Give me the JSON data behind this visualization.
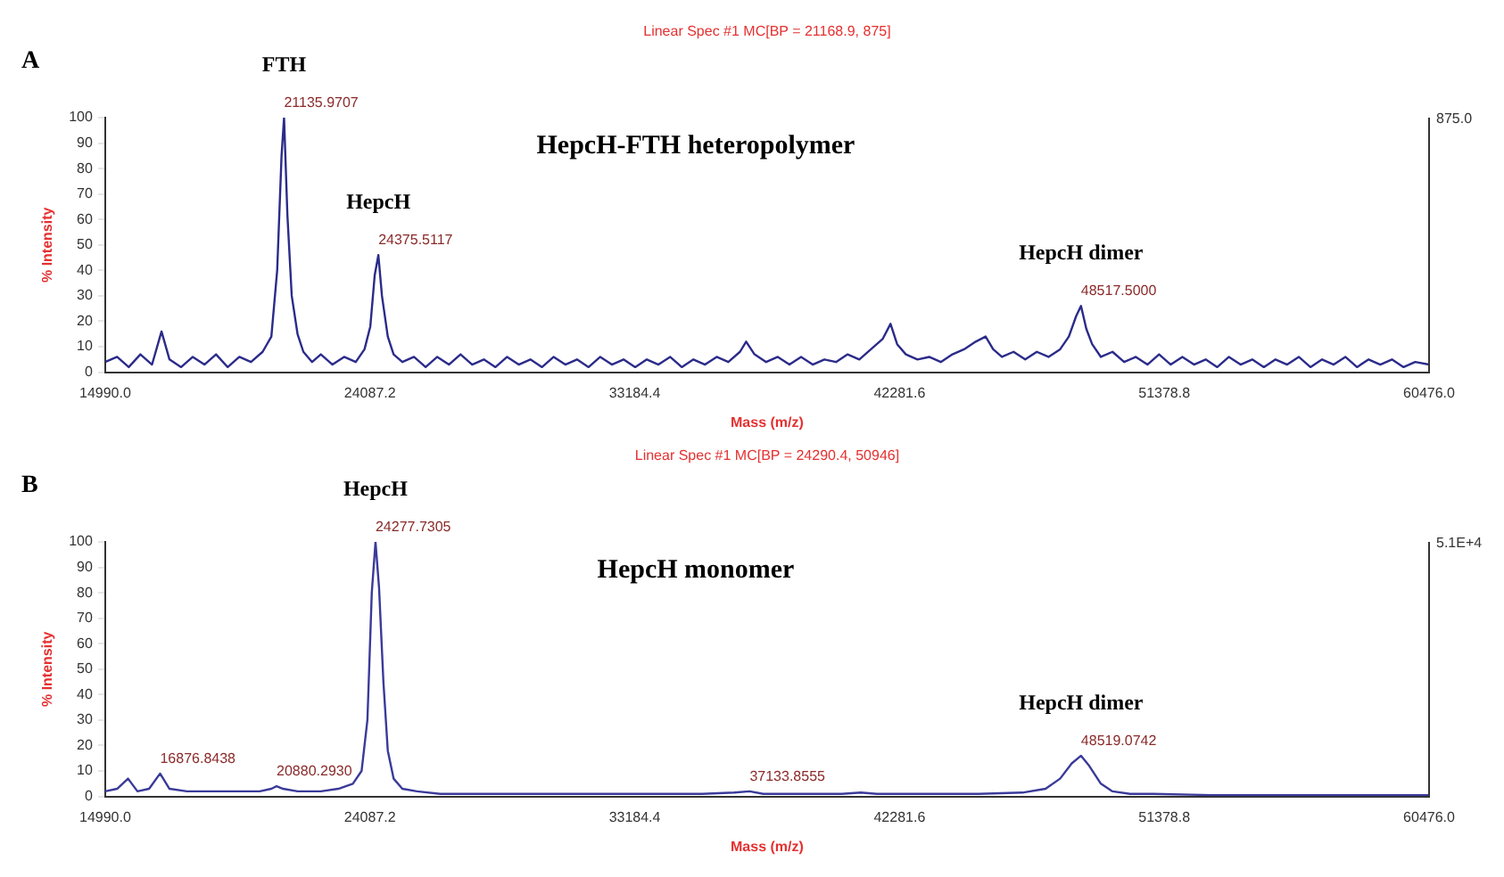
{
  "chart_data": [
    {
      "type": "line",
      "title": "HepcH-FTH heteropolymer",
      "subtitle": "Linear Spec #1 MC[BP = 21168.9, 875]",
      "xlabel": "Mass (m/z)",
      "ylabel": "% Intensity",
      "annotations": [
        "A",
        "875.0",
        {
          "text": "FTH",
          "x": 21136,
          "y": 100
        },
        {
          "text": "21135.9707",
          "x": 21136,
          "y": 100
        },
        {
          "text": "HepcH",
          "x": 24376,
          "y": 46
        },
        {
          "text": "24375.5117",
          "x": 24376,
          "y": 46
        },
        {
          "text": "HepcH dimer",
          "x": 48517,
          "y": 26
        },
        {
          "text": "48517.5000",
          "x": 48517,
          "y": 26
        }
      ],
      "grid": false,
      "legend": false,
      "marker": "none",
      "line_style": "solid",
      "xlim": [
        14990,
        60476
      ],
      "xticks": [
        {
          "value": 14990,
          "label": "14990.0"
        },
        {
          "value": 24087.2,
          "label": "24087.2"
        },
        {
          "value": 33184.4,
          "label": "33184.4"
        },
        {
          "value": 42281.6,
          "label": "42281.6"
        },
        {
          "value": 51378.8,
          "label": "51378.8"
        },
        {
          "value": 60476,
          "label": "60476.0"
        }
      ],
      "ylim": [
        0,
        100
      ],
      "yticks": [
        0,
        10,
        20,
        30,
        40,
        50,
        60,
        70,
        80,
        90,
        100
      ],
      "series": [
        {
          "color": "#2b2b8a",
          "x": [
            14990,
            15400,
            15800,
            16200,
            16600,
            16926,
            17200,
            17600,
            18000,
            18400,
            18800,
            19200,
            19600,
            20000,
            20400,
            20700,
            20900,
            21050,
            21136,
            21250,
            21400,
            21600,
            21800,
            22100,
            22400,
            22800,
            23200,
            23600,
            23900,
            24100,
            24250,
            24376,
            24500,
            24700,
            24900,
            25200,
            25600,
            26000,
            26400,
            26800,
            27200,
            27600,
            28000,
            28400,
            28800,
            29200,
            29600,
            30000,
            30400,
            30800,
            31200,
            31600,
            32000,
            32400,
            32800,
            33200,
            33600,
            34000,
            34400,
            34800,
            35200,
            35600,
            36000,
            36400,
            36800,
            37012,
            37300,
            37700,
            38100,
            38500,
            38900,
            39300,
            39700,
            40100,
            40500,
            40900,
            41300,
            41700,
            41973,
            42200,
            42500,
            42900,
            43300,
            43700,
            44100,
            44500,
            44900,
            45240,
            45500,
            45800,
            46200,
            46600,
            47000,
            47400,
            47800,
            48100,
            48350,
            48517,
            48700,
            48900,
            49200,
            49600,
            50000,
            50400,
            50800,
            51200,
            51600,
            52000,
            52400,
            52800,
            53200,
            53600,
            54000,
            54400,
            54800,
            55200,
            55600,
            56000,
            56400,
            56800,
            57200,
            57600,
            58000,
            58400,
            58800,
            59200,
            59600,
            60000,
            60476
          ],
          "values": [
            4,
            6,
            2,
            7,
            3,
            16,
            5,
            2,
            6,
            3,
            7,
            2,
            6,
            4,
            8,
            14,
            40,
            85,
            100,
            62,
            30,
            15,
            8,
            4,
            7,
            3,
            6,
            4,
            9,
            18,
            38,
            46,
            30,
            14,
            7,
            4,
            6,
            2,
            6,
            3,
            7,
            3,
            5,
            2,
            6,
            3,
            5,
            2,
            6,
            3,
            5,
            2,
            6,
            3,
            5,
            2,
            5,
            3,
            6,
            2,
            5,
            3,
            6,
            4,
            8,
            12,
            7,
            4,
            6,
            3,
            6,
            3,
            5,
            4,
            7,
            5,
            9,
            13,
            19,
            11,
            7,
            5,
            6,
            4,
            7,
            9,
            12,
            14,
            9,
            6,
            8,
            5,
            8,
            6,
            9,
            14,
            22,
            26,
            17,
            11,
            6,
            8,
            4,
            6,
            3,
            7,
            3,
            6,
            3,
            5,
            2,
            6,
            3,
            5,
            2,
            5,
            3,
            6,
            2,
            5,
            3,
            6,
            2,
            5,
            3,
            5,
            2,
            4,
            3
          ]
        }
      ]
    },
    {
      "type": "line",
      "title": "HepcH monomer",
      "subtitle": "Linear Spec #1 MC[BP = 24290.4, 50946]",
      "xlabel": "Mass (m/z)",
      "ylabel": "% Intensity",
      "annotations": [
        "B",
        "5.1E+4",
        {
          "text": "HepcH",
          "x": 24278,
          "y": 100
        },
        {
          "text": "24277.7305",
          "x": 24278,
          "y": 100
        },
        {
          "text": "16876.8438",
          "x": 16877,
          "y": 9
        },
        {
          "text": "20880.2930",
          "x": 20880,
          "y": 4
        },
        {
          "text": "37133.8555",
          "x": 37134,
          "y": 2
        },
        {
          "text": "HepcH dimer",
          "x": 48519,
          "y": 16
        },
        {
          "text": "48519.0742",
          "x": 48519,
          "y": 16
        }
      ],
      "grid": false,
      "legend": false,
      "marker": "none",
      "line_style": "solid",
      "xlim": [
        14990,
        60476
      ],
      "xticks": [
        {
          "value": 14990,
          "label": "14990.0"
        },
        {
          "value": 24087.2,
          "label": "24087.2"
        },
        {
          "value": 33184.4,
          "label": "33184.4"
        },
        {
          "value": 42281.6,
          "label": "42281.6"
        },
        {
          "value": 51378.8,
          "label": "51378.8"
        },
        {
          "value": 60476,
          "label": "60476.0"
        }
      ],
      "ylim": [
        0,
        100
      ],
      "yticks": [
        0,
        10,
        20,
        30,
        40,
        50,
        60,
        70,
        80,
        90,
        100
      ],
      "series": [
        {
          "color": "#3a3a9a",
          "x": [
            14990,
            15400,
            15776,
            16100,
            16500,
            16877,
            17200,
            17800,
            18600,
            19500,
            20300,
            20700,
            20880,
            21100,
            21600,
            22400,
            23000,
            23500,
            23800,
            24000,
            24150,
            24278,
            24400,
            24550,
            24700,
            24900,
            25200,
            25700,
            26500,
            28000,
            30000,
            32000,
            34000,
            35500,
            36600,
            37134,
            37600,
            39000,
            40300,
            40950,
            41500,
            43000,
            45000,
            46500,
            47300,
            47800,
            48200,
            48519,
            48800,
            49200,
            49600,
            50200,
            51000,
            53000,
            56000,
            60476
          ],
          "values": [
            2,
            3,
            7,
            2,
            3,
            9,
            3,
            2,
            2,
            2,
            2,
            3,
            4,
            3,
            2,
            2,
            3,
            5,
            10,
            30,
            80,
            100,
            82,
            45,
            18,
            7,
            3,
            2,
            1,
            1,
            1,
            1,
            1,
            1,
            1.5,
            2,
            1,
            1,
            1,
            1.5,
            1,
            1,
            1,
            1.5,
            3,
            7,
            13,
            16,
            12,
            5,
            2,
            1,
            1,
            0.5,
            0.5,
            0.5
          ]
        }
      ]
    }
  ]
}
